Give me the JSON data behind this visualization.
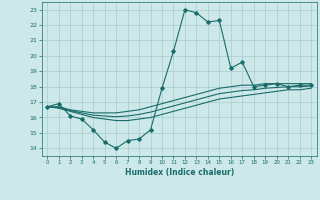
{
  "xlabel": "Humidex (Indice chaleur)",
  "x": [
    0,
    1,
    2,
    3,
    4,
    5,
    6,
    7,
    8,
    9,
    10,
    11,
    12,
    13,
    14,
    15,
    16,
    17,
    18,
    19,
    20,
    21,
    22,
    23
  ],
  "y_main": [
    16.7,
    16.9,
    16.1,
    15.9,
    15.2,
    14.4,
    14.0,
    14.5,
    14.6,
    15.2,
    17.9,
    20.3,
    23.0,
    22.8,
    22.2,
    22.3,
    19.2,
    19.6,
    18.0,
    18.1,
    18.2,
    18.0,
    18.1,
    18.1
  ],
  "y_upper": [
    16.7,
    16.7,
    16.5,
    16.4,
    16.3,
    16.3,
    16.3,
    16.4,
    16.5,
    16.7,
    16.9,
    17.1,
    17.3,
    17.5,
    17.7,
    17.9,
    18.0,
    18.1,
    18.1,
    18.2,
    18.2,
    18.2,
    18.2,
    18.2
  ],
  "y_lower": [
    16.7,
    16.6,
    16.4,
    16.2,
    16.0,
    15.9,
    15.8,
    15.8,
    15.9,
    16.0,
    16.2,
    16.4,
    16.6,
    16.8,
    17.0,
    17.2,
    17.3,
    17.4,
    17.5,
    17.6,
    17.7,
    17.8,
    17.8,
    17.9
  ],
  "y_mid": [
    16.7,
    16.65,
    16.45,
    16.3,
    16.15,
    16.1,
    16.05,
    16.1,
    16.2,
    16.35,
    16.55,
    16.75,
    16.95,
    17.15,
    17.35,
    17.55,
    17.65,
    17.75,
    17.8,
    17.9,
    17.95,
    18.0,
    18.0,
    18.05
  ],
  "color": "#1a6b6b",
  "bg_color": "#cce8e8",
  "grid_color": "#aacccc",
  "ylim": [
    13.5,
    23.5
  ],
  "xlim": [
    -0.5,
    23.5
  ],
  "yticks": [
    14,
    15,
    16,
    17,
    18,
    19,
    20,
    21,
    22,
    23
  ],
  "xticks": [
    0,
    1,
    2,
    3,
    4,
    5,
    6,
    7,
    8,
    9,
    10,
    11,
    12,
    13,
    14,
    15,
    16,
    17,
    18,
    19,
    20,
    21,
    22,
    23
  ]
}
